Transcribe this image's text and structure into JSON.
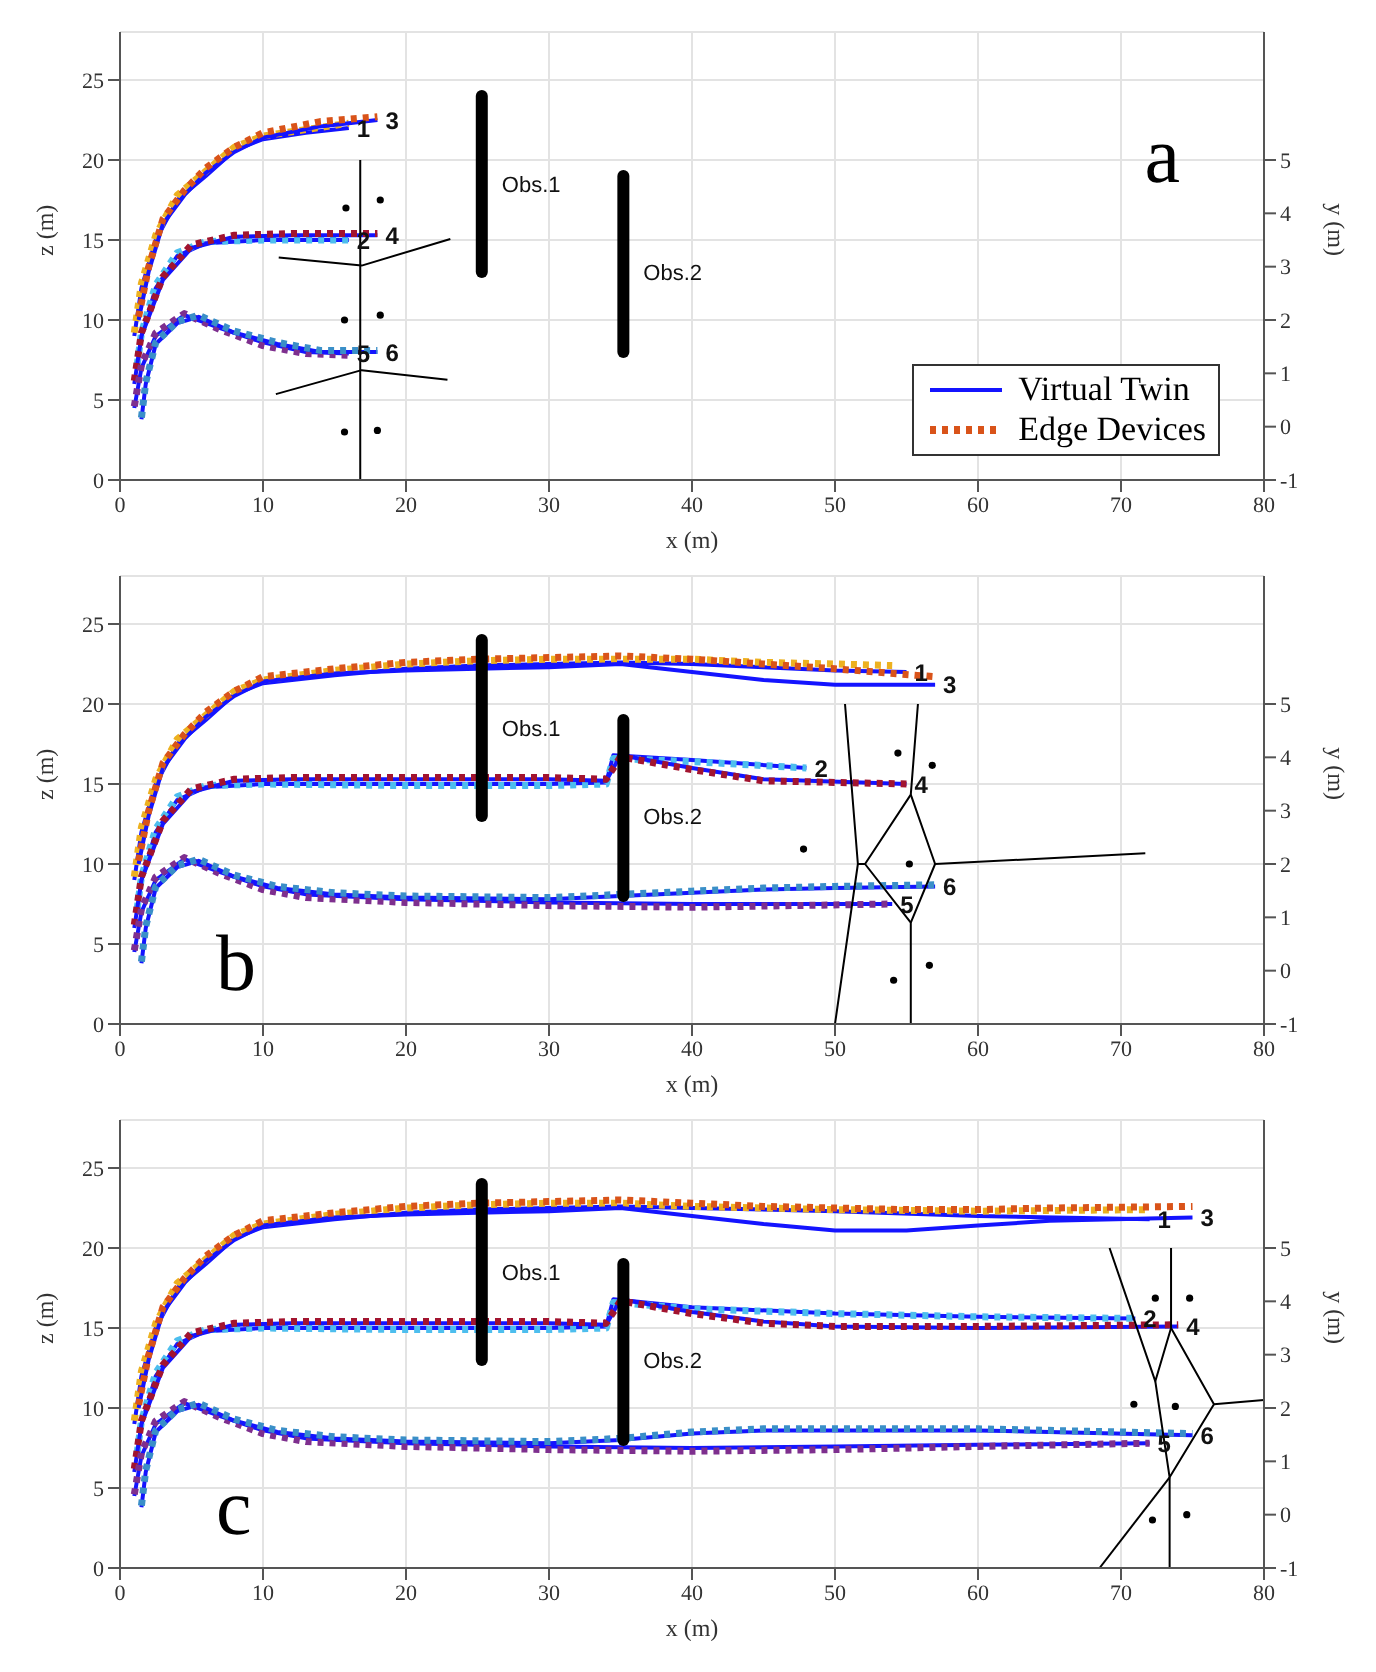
{
  "chart_data": [
    {
      "type": "line",
      "xlabel": "x (m)",
      "ylabel": "z (m)",
      "y2label": "y (m)",
      "xlim": [
        0,
        80
      ],
      "xticks": [
        0,
        10,
        20,
        30,
        40,
        50,
        60,
        70,
        80
      ],
      "ylim": [
        0,
        28
      ],
      "yticks": [
        0,
        5,
        10,
        15,
        20,
        25
      ],
      "y2lim": [
        -1,
        7.4
      ],
      "y2ticks": [
        -1,
        0,
        1,
        2,
        3,
        4,
        5
      ],
      "grid": true,
      "legend": "bottom right",
      "annotations": [
        "a",
        {
          "text": "Obs.1",
          "x": 25.3,
          "y": 18.5
        },
        {
          "text": "Obs.2",
          "x": 35.2,
          "y": 13
        },
        {
          "text": "1",
          "x": 16,
          "y": 22
        },
        {
          "text": "2",
          "x": 16,
          "y": 15
        },
        {
          "text": "3",
          "x": 18,
          "y": 22.5
        },
        {
          "text": "4",
          "x": 18,
          "y": 15.3
        },
        {
          "text": "5",
          "x": 16,
          "y": 7.9
        },
        {
          "text": "6",
          "x": 18,
          "y": 8
        }
      ],
      "series": [
        {
          "name": "Virtual Twin",
          "color": "#1414ff",
          "x": [
            1,
            1.5,
            2.5,
            4,
            6,
            8,
            10,
            13,
            16
          ],
          "values": [
            9,
            12,
            15,
            17.5,
            19,
            20.6,
            21.3,
            21.7,
            22
          ]
        },
        {
          "color": "#edb120",
          "line_style": "dotted",
          "x": [
            1,
            1.5,
            2.5,
            4,
            6,
            8,
            10,
            13,
            16
          ],
          "values": [
            9.2,
            12.3,
            15.3,
            17.8,
            19.3,
            20.8,
            21.5,
            21.9,
            22.3
          ]
        },
        {
          "color": "#1414ff",
          "x": [
            1.3,
            2,
            3,
            4.5,
            6,
            8,
            10,
            14,
            18
          ],
          "values": [
            10,
            13,
            16,
            17.8,
            19.2,
            20.5,
            21.4,
            22.1,
            22.5
          ]
        },
        {
          "name": "Edge Devices",
          "color": "#d95319",
          "line_style": "dotted",
          "x": [
            1.3,
            2,
            3,
            4.5,
            6,
            8,
            10,
            14,
            18
          ],
          "values": [
            10.2,
            13.3,
            16.3,
            18.1,
            19.5,
            20.8,
            21.7,
            22.4,
            22.7
          ]
        },
        {
          "color": "#1414ff",
          "x": [
            1.2,
            1.5,
            2.5,
            4,
            6,
            10,
            16
          ],
          "values": [
            7,
            9,
            12,
            14,
            14.8,
            15,
            15
          ]
        },
        {
          "color": "#4dbeee",
          "line_style": "dotted",
          "x": [
            1.2,
            1.5,
            2.5,
            4,
            6,
            10,
            16
          ],
          "values": [
            7.2,
            9.2,
            12.2,
            14.2,
            14.9,
            15,
            15
          ]
        },
        {
          "color": "#1414ff",
          "x": [
            1,
            1.5,
            3,
            5,
            8,
            12,
            18
          ],
          "values": [
            6,
            9,
            12.5,
            14.5,
            15.2,
            15.3,
            15.3
          ]
        },
        {
          "color": "#a2142f",
          "line_style": "dotted",
          "x": [
            1,
            1.5,
            3,
            5,
            8,
            12,
            18
          ],
          "values": [
            6.2,
            9.2,
            12.7,
            14.7,
            15.3,
            15.4,
            15.4
          ]
        },
        {
          "color": "#1414ff",
          "x": [
            1,
            1.5,
            2.5,
            4.5,
            7,
            10,
            13,
            16
          ],
          "values": [
            4.5,
            7,
            9,
            10.3,
            9.5,
            8.6,
            8,
            7.9
          ]
        },
        {
          "color": "#7e2f8e",
          "line_style": "dotted",
          "x": [
            1,
            1.5,
            2.5,
            4.5,
            7,
            10,
            13,
            16
          ],
          "values": [
            4.6,
            7.2,
            9.2,
            10.4,
            9.4,
            8.4,
            7.9,
            7.8
          ]
        },
        {
          "color": "#1414ff",
          "x": [
            1.5,
            1.8,
            2.5,
            4,
            5.5,
            8,
            11,
            14,
            18
          ],
          "values": [
            3.8,
            6,
            8.5,
            9.8,
            10.2,
            9.2,
            8.5,
            8,
            8
          ]
        },
        {
          "color": "#3a8fc8",
          "line_style": "dotted",
          "x": [
            1.5,
            1.8,
            2.5,
            4,
            5.5,
            8,
            11,
            14,
            18
          ],
          "values": [
            3.9,
            6.1,
            8.6,
            9.9,
            10.3,
            9.3,
            8.6,
            8.1,
            8.1
          ]
        },
        {
          "type": "bar",
          "color": "#000000",
          "x": [
            25.3,
            35.2
          ],
          "base": [
            13,
            8
          ],
          "values": [
            11,
            11
          ]
        },
        {
          "color": "#000000",
          "axis": "y2",
          "x": [
            16.8,
            16.8
          ],
          "values": [
            -1,
            5
          ]
        },
        {
          "color": "#000000",
          "axis": "y2",
          "x": [
            11.1,
            16.9,
            23.1
          ],
          "values": [
            3.17,
            3.02,
            3.52
          ]
        },
        {
          "color": "#000000",
          "axis": "y2",
          "x": [
            10.9,
            16.9,
            22.9
          ],
          "values": [
            0.61,
            1.06,
            0.88
          ]
        },
        {
          "type": "scatter",
          "color": "#000000",
          "axis": "y2",
          "x": [
            15.8,
            18.2,
            15.7,
            18.2,
            15.7,
            18
          ],
          "values": [
            4.1,
            4.25,
            2,
            2.09,
            -0.1,
            -0.07
          ]
        }
      ]
    },
    {
      "type": "line",
      "xlabel": "x (m)",
      "ylabel": "z (m)",
      "y2label": "y (m)",
      "xlim": [
        0,
        80
      ],
      "xticks": [
        0,
        10,
        20,
        30,
        40,
        50,
        60,
        70,
        80
      ],
      "ylim": [
        0,
        28
      ],
      "yticks": [
        0,
        5,
        10,
        15,
        20,
        25
      ],
      "y2lim": [
        -1,
        7.4
      ],
      "y2ticks": [
        -1,
        0,
        1,
        2,
        3,
        4,
        5
      ],
      "grid": true,
      "annotations": [
        "b",
        {
          "text": "Obs.1",
          "x": 25.3,
          "y": 18.5
        },
        {
          "text": "Obs.2",
          "x": 35.2,
          "y": 13
        },
        {
          "text": "1",
          "x": 55,
          "y": 22
        },
        {
          "text": "2",
          "x": 48,
          "y": 16
        },
        {
          "text": "3",
          "x": 57,
          "y": 21.2
        },
        {
          "text": "4",
          "x": 55,
          "y": 15
        },
        {
          "text": "5",
          "x": 54,
          "y": 7.5
        },
        {
          "text": "6",
          "x": 57,
          "y": 8.6
        }
      ],
      "series": [
        {
          "color": "#1414ff",
          "x": [
            1,
            1.5,
            2.5,
            4,
            6,
            8,
            10,
            15,
            20,
            25,
            30,
            35,
            40,
            45,
            50,
            55
          ],
          "values": [
            9,
            12,
            15,
            17.5,
            19,
            20.6,
            21.3,
            21.8,
            22.2,
            22.4,
            22.5,
            22.6,
            22.5,
            22.3,
            22.1,
            22
          ]
        },
        {
          "color": "#edb120",
          "line_style": "dotted",
          "x": [
            1,
            1.5,
            2.5,
            4,
            6,
            8,
            10,
            15,
            20,
            25,
            30,
            35,
            40,
            45,
            50,
            54
          ],
          "values": [
            9.2,
            12.3,
            15.3,
            17.8,
            19.3,
            20.8,
            21.5,
            22.1,
            22.5,
            22.7,
            22.8,
            22.8,
            22.8,
            22.6,
            22.5,
            22.4
          ]
        },
        {
          "color": "#1414ff",
          "x": [
            1.3,
            2,
            3,
            4.5,
            6,
            8,
            10,
            15,
            20,
            25,
            30,
            35,
            40,
            45,
            50,
            57
          ],
          "values": [
            10,
            13,
            16,
            17.8,
            19.2,
            20.5,
            21.4,
            21.9,
            22.1,
            22.2,
            22.3,
            22.5,
            22,
            21.5,
            21.2,
            21.2
          ]
        },
        {
          "color": "#d95319",
          "line_style": "dotted",
          "x": [
            1.3,
            2,
            3,
            4.5,
            6,
            8,
            10,
            15,
            20,
            25,
            30,
            35,
            40,
            45,
            50,
            57
          ],
          "values": [
            10.2,
            13.3,
            16.3,
            18.1,
            19.5,
            20.8,
            21.7,
            22.2,
            22.6,
            22.8,
            22.9,
            23,
            22.8,
            22.5,
            22.2,
            21.7
          ]
        },
        {
          "color": "#1414ff",
          "x": [
            1.2,
            1.5,
            2.5,
            4,
            6,
            10,
            20,
            30,
            34,
            34.5,
            40,
            48
          ],
          "values": [
            7,
            9,
            12,
            14,
            14.8,
            15,
            15,
            15,
            15.1,
            16.8,
            16.5,
            16
          ]
        },
        {
          "color": "#4dbeee",
          "line_style": "dotted",
          "x": [
            1.2,
            1.5,
            2.5,
            4,
            6,
            10,
            20,
            30,
            34,
            34.5,
            40,
            48
          ],
          "values": [
            7.2,
            9.2,
            12.2,
            14.2,
            14.9,
            15,
            14.9,
            14.9,
            15,
            16.6,
            16.4,
            16
          ]
        },
        {
          "color": "#1414ff",
          "x": [
            1,
            1.5,
            3,
            5,
            8,
            12,
            20,
            30,
            34,
            35,
            40,
            45,
            55
          ],
          "values": [
            6,
            9,
            12.5,
            14.5,
            15.2,
            15.3,
            15.3,
            15.3,
            15.2,
            16.8,
            16,
            15.3,
            15
          ]
        },
        {
          "color": "#a2142f",
          "line_style": "dotted",
          "x": [
            1,
            1.5,
            3,
            5,
            8,
            12,
            20,
            30,
            34,
            35,
            40,
            45,
            55
          ],
          "values": [
            6.2,
            9.2,
            12.7,
            14.7,
            15.3,
            15.4,
            15.4,
            15.4,
            15.3,
            16.7,
            15.9,
            15.2,
            15
          ]
        },
        {
          "color": "#1414ff",
          "x": [
            1,
            1.5,
            2.5,
            4.5,
            7,
            10,
            13,
            20,
            30,
            40,
            54
          ],
          "values": [
            4.5,
            7,
            9,
            10.3,
            9.5,
            8.6,
            8.1,
            7.8,
            7.6,
            7.5,
            7.5
          ]
        },
        {
          "color": "#7e2f8e",
          "line_style": "dotted",
          "x": [
            1,
            1.5,
            2.5,
            4.5,
            7,
            10,
            13,
            20,
            30,
            40,
            54
          ],
          "values": [
            4.6,
            7.2,
            9.2,
            10.4,
            9.4,
            8.4,
            7.9,
            7.6,
            7.4,
            7.3,
            7.5
          ]
        },
        {
          "color": "#1414ff",
          "x": [
            1.5,
            1.8,
            2.5,
            4,
            5.5,
            8,
            11,
            15,
            20,
            30,
            35,
            40,
            45,
            50,
            57
          ],
          "values": [
            3.8,
            6,
            8.5,
            9.8,
            10.2,
            9.2,
            8.5,
            8.1,
            7.9,
            7.8,
            8,
            8.2,
            8.4,
            8.5,
            8.6
          ]
        },
        {
          "color": "#3a8fc8",
          "line_style": "dotted",
          "x": [
            1.5,
            1.8,
            2.5,
            4,
            5.5,
            8,
            11,
            15,
            20,
            30,
            35,
            40,
            45,
            50,
            57
          ],
          "values": [
            3.9,
            6.1,
            8.6,
            9.9,
            10.3,
            9.3,
            8.6,
            8.2,
            8,
            7.9,
            8.1,
            8.3,
            8.5,
            8.6,
            8.7
          ]
        },
        {
          "type": "bar",
          "color": "#000000",
          "x": [
            25.3,
            35.2
          ],
          "base": [
            13,
            8
          ],
          "values": [
            11,
            11
          ]
        },
        {
          "color": "#000000",
          "axis": "y2",
          "x": [
            50,
            51.6,
            50.7
          ],
          "values": [
            -1,
            2,
            5
          ]
        },
        {
          "color": "#000000",
          "axis": "y2",
          "x": [
            55.8,
            55.3,
            52.1,
            55.3,
            55.3
          ],
          "values": [
            5,
            3.3,
            2,
            0.9,
            -1
          ]
        },
        {
          "color": "#000000",
          "axis": "y2",
          "x": [
            55.3,
            57,
            55.3
          ],
          "values": [
            3.3,
            2,
            0.9
          ]
        },
        {
          "color": "#000000",
          "axis": "y2",
          "x": [
            57,
            71.7
          ],
          "values": [
            2,
            2.2
          ]
        },
        {
          "color": "#000000",
          "axis": "y2",
          "x": [
            51.6,
            52.1
          ],
          "values": [
            2,
            2
          ]
        },
        {
          "type": "scatter",
          "color": "#000000",
          "axis": "y2",
          "x": [
            54.4,
            56.8,
            47.8,
            55.2,
            56.6,
            54.1
          ],
          "values": [
            4.08,
            3.85,
            2.28,
            2,
            0.1,
            -0.18
          ]
        }
      ]
    },
    {
      "type": "line",
      "xlabel": "x (m)",
      "ylabel": "z (m)",
      "y2label": "y (m)",
      "xlim": [
        0,
        80
      ],
      "xticks": [
        0,
        10,
        20,
        30,
        40,
        50,
        60,
        70,
        80
      ],
      "ylim": [
        0,
        28
      ],
      "yticks": [
        0,
        5,
        10,
        15,
        20,
        25
      ],
      "y2lim": [
        -1,
        7.4
      ],
      "y2ticks": [
        -1,
        0,
        1,
        2,
        3,
        4,
        5
      ],
      "grid": true,
      "annotations": [
        "c",
        {
          "text": "Obs.1",
          "x": 25.3,
          "y": 18.5
        },
        {
          "text": "Obs.2",
          "x": 35.2,
          "y": 13
        },
        {
          "text": "1",
          "x": 72,
          "y": 21.8
        },
        {
          "text": "2",
          "x": 71,
          "y": 15.6
        },
        {
          "text": "3",
          "x": 75,
          "y": 21.9
        },
        {
          "text": "4",
          "x": 74,
          "y": 15.1
        },
        {
          "text": "5",
          "x": 72,
          "y": 7.8
        },
        {
          "text": "6",
          "x": 75,
          "y": 8.3
        }
      ],
      "series": [
        {
          "color": "#1414ff",
          "x": [
            1,
            1.5,
            2.5,
            4,
            6,
            8,
            10,
            15,
            20,
            25,
            30,
            35,
            40,
            50,
            60,
            72
          ],
          "values": [
            9,
            12,
            15,
            17.5,
            19,
            20.6,
            21.3,
            21.8,
            22.2,
            22.4,
            22.5,
            22.6,
            22.5,
            22.3,
            22,
            21.8
          ]
        },
        {
          "color": "#edb120",
          "line_style": "dotted",
          "x": [
            1,
            1.5,
            2.5,
            4,
            6,
            8,
            10,
            15,
            20,
            25,
            30,
            35,
            40,
            50,
            60,
            72
          ],
          "values": [
            9.2,
            12.3,
            15.3,
            17.8,
            19.3,
            20.8,
            21.5,
            22.1,
            22.5,
            22.7,
            22.8,
            22.8,
            22.6,
            22.4,
            22.3,
            22.4
          ]
        },
        {
          "color": "#1414ff",
          "x": [
            1.3,
            2,
            3,
            4.5,
            6,
            8,
            10,
            15,
            20,
            25,
            30,
            35,
            40,
            45,
            50,
            55,
            60,
            65,
            75
          ],
          "values": [
            10,
            13,
            16,
            17.8,
            19.2,
            20.5,
            21.4,
            21.9,
            22.1,
            22.2,
            22.3,
            22.5,
            22,
            21.5,
            21.1,
            21.1,
            21.4,
            21.7,
            21.9
          ]
        },
        {
          "color": "#d95319",
          "line_style": "dotted",
          "x": [
            1.3,
            2,
            3,
            4.5,
            6,
            8,
            10,
            15,
            20,
            25,
            30,
            35,
            40,
            45,
            50,
            55,
            60,
            65,
            75
          ],
          "values": [
            10.2,
            13.3,
            16.3,
            18.1,
            19.5,
            20.8,
            21.7,
            22.2,
            22.6,
            22.8,
            22.9,
            23,
            22.8,
            22.6,
            22.5,
            22.4,
            22.4,
            22.5,
            22.6
          ]
        },
        {
          "color": "#1414ff",
          "x": [
            1.2,
            1.5,
            2.5,
            4,
            6,
            10,
            20,
            30,
            34,
            34.5,
            40,
            50,
            60,
            71
          ],
          "values": [
            7,
            9,
            12,
            14,
            14.8,
            15,
            15,
            15,
            15.1,
            16.8,
            16.3,
            15.9,
            15.7,
            15.6
          ]
        },
        {
          "color": "#4dbeee",
          "line_style": "dotted",
          "x": [
            1.2,
            1.5,
            2.5,
            4,
            6,
            10,
            20,
            30,
            34,
            34.5,
            40,
            50,
            60,
            71
          ],
          "values": [
            7.2,
            9.2,
            12.2,
            14.2,
            14.9,
            15,
            14.9,
            14.9,
            15,
            16.6,
            16.2,
            15.9,
            15.7,
            15.6
          ]
        },
        {
          "color": "#1414ff",
          "x": [
            1,
            1.5,
            3,
            5,
            8,
            12,
            20,
            30,
            34,
            35,
            40,
            45,
            50,
            60,
            74
          ],
          "values": [
            6,
            9,
            12.5,
            14.5,
            15.2,
            15.3,
            15.3,
            15.3,
            15.2,
            16.8,
            16,
            15.4,
            15.1,
            15,
            15.1
          ]
        },
        {
          "color": "#a2142f",
          "line_style": "dotted",
          "x": [
            1,
            1.5,
            3,
            5,
            8,
            12,
            20,
            30,
            34,
            35,
            40,
            45,
            50,
            60,
            74
          ],
          "values": [
            6.2,
            9.2,
            12.7,
            14.7,
            15.3,
            15.4,
            15.4,
            15.4,
            15.3,
            16.7,
            15.9,
            15.3,
            15.1,
            15.1,
            15.2
          ]
        },
        {
          "color": "#1414ff",
          "x": [
            1,
            1.5,
            2.5,
            4.5,
            7,
            10,
            13,
            20,
            30,
            40,
            50,
            60,
            72
          ],
          "values": [
            4.5,
            7,
            9,
            10.3,
            9.5,
            8.6,
            8.1,
            7.8,
            7.6,
            7.5,
            7.6,
            7.7,
            7.8
          ]
        },
        {
          "color": "#7e2f8e",
          "line_style": "dotted",
          "x": [
            1,
            1.5,
            2.5,
            4.5,
            7,
            10,
            13,
            20,
            30,
            40,
            50,
            60,
            72
          ],
          "values": [
            4.6,
            7.2,
            9.2,
            10.4,
            9.4,
            8.4,
            7.9,
            7.6,
            7.4,
            7.3,
            7.4,
            7.6,
            7.8
          ]
        },
        {
          "color": "#1414ff",
          "x": [
            1.5,
            1.8,
            2.5,
            4,
            5.5,
            8,
            11,
            15,
            20,
            30,
            35,
            40,
            45,
            50,
            60,
            75
          ],
          "values": [
            3.8,
            6,
            8.5,
            9.8,
            10.2,
            9.2,
            8.5,
            8.1,
            7.9,
            7.8,
            8,
            8.4,
            8.6,
            8.6,
            8.6,
            8.3
          ]
        },
        {
          "color": "#3a8fc8",
          "line_style": "dotted",
          "x": [
            1.5,
            1.8,
            2.5,
            4,
            5.5,
            8,
            11,
            15,
            20,
            30,
            35,
            40,
            45,
            50,
            60,
            75
          ],
          "values": [
            3.9,
            6.1,
            8.6,
            9.9,
            10.3,
            9.3,
            8.6,
            8.2,
            8,
            7.9,
            8.1,
            8.5,
            8.7,
            8.7,
            8.7,
            8.4
          ]
        },
        {
          "type": "bar",
          "color": "#000000",
          "x": [
            25.3,
            35.2
          ],
          "base": [
            13,
            8
          ],
          "values": [
            11,
            11
          ]
        },
        {
          "color": "#000000",
          "axis": "y2",
          "x": [
            69.2,
            72.4,
            73.5,
            73.5
          ],
          "values": [
            5,
            2.5,
            3.5,
            5
          ]
        },
        {
          "color": "#000000",
          "axis": "y2",
          "x": [
            73.5,
            76.5,
            73.4,
            72.4
          ],
          "values": [
            3.5,
            2.07,
            0.7,
            2.5
          ]
        },
        {
          "color": "#000000",
          "axis": "y2",
          "x": [
            76.5,
            80
          ],
          "values": [
            2.07,
            2.15
          ]
        },
        {
          "color": "#000000",
          "axis": "y2",
          "x": [
            73.4,
            73.4
          ],
          "values": [
            0.7,
            -1
          ]
        },
        {
          "color": "#000000",
          "axis": "y2",
          "x": [
            73.4,
            68.5
          ],
          "values": [
            0.7,
            -1
          ]
        },
        {
          "type": "scatter",
          "color": "#000000",
          "axis": "y2",
          "x": [
            72.4,
            74.8,
            70.9,
            73.8,
            72.2,
            74.6
          ],
          "values": [
            4.06,
            4.06,
            2.07,
            2.03,
            -0.1,
            0
          ]
        }
      ]
    }
  ]
}
